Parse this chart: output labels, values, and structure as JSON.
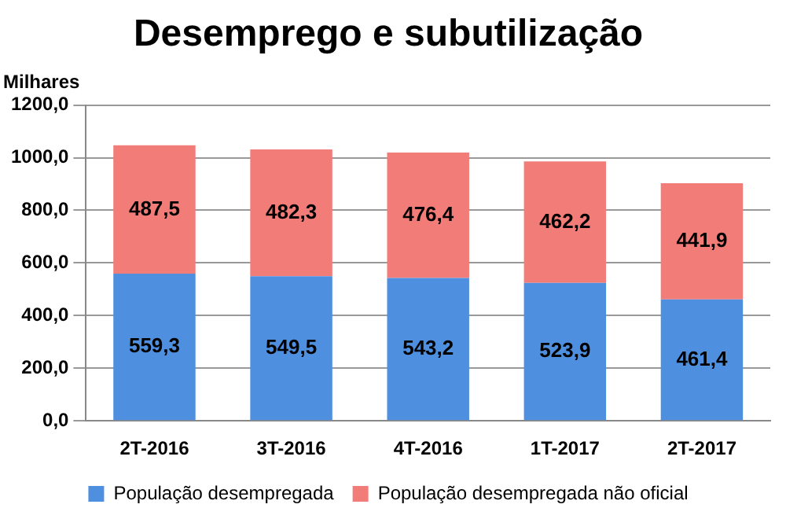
{
  "chart_data": {
    "type": "bar",
    "title": "Desemprego e subutilização",
    "ylabel": "Milhares",
    "categories": [
      "2T-2016",
      "3T-2016",
      "4T-2016",
      "1T-2017",
      "2T-2017"
    ],
    "stacked": true,
    "series": [
      {
        "name": "População desempregada",
        "color": "#4f8fe0",
        "values": [
          559.3,
          549.5,
          543.2,
          523.9,
          461.4
        ],
        "value_labels": [
          "559,3",
          "549,5",
          "543,2",
          "523,9",
          "461,4"
        ]
      },
      {
        "name": "População desempregada não oficial",
        "color": "#f27c78",
        "values": [
          487.5,
          482.3,
          476.4,
          462.2,
          441.9
        ],
        "value_labels": [
          "487,5",
          "482,3",
          "476,4",
          "462,2",
          "441,9"
        ]
      }
    ],
    "ylim": [
      0,
      1200
    ],
    "yticks": [
      {
        "value": 0,
        "label": "0,0"
      },
      {
        "value": 200,
        "label": "200,0"
      },
      {
        "value": 400,
        "label": "400,0"
      },
      {
        "value": 600,
        "label": "600,0"
      },
      {
        "value": 800,
        "label": "800,0"
      },
      {
        "value": 1000,
        "label": "1000,0"
      },
      {
        "value": 1200,
        "label": "1200,0"
      }
    ],
    "grid": "y",
    "legend": "bottom"
  }
}
